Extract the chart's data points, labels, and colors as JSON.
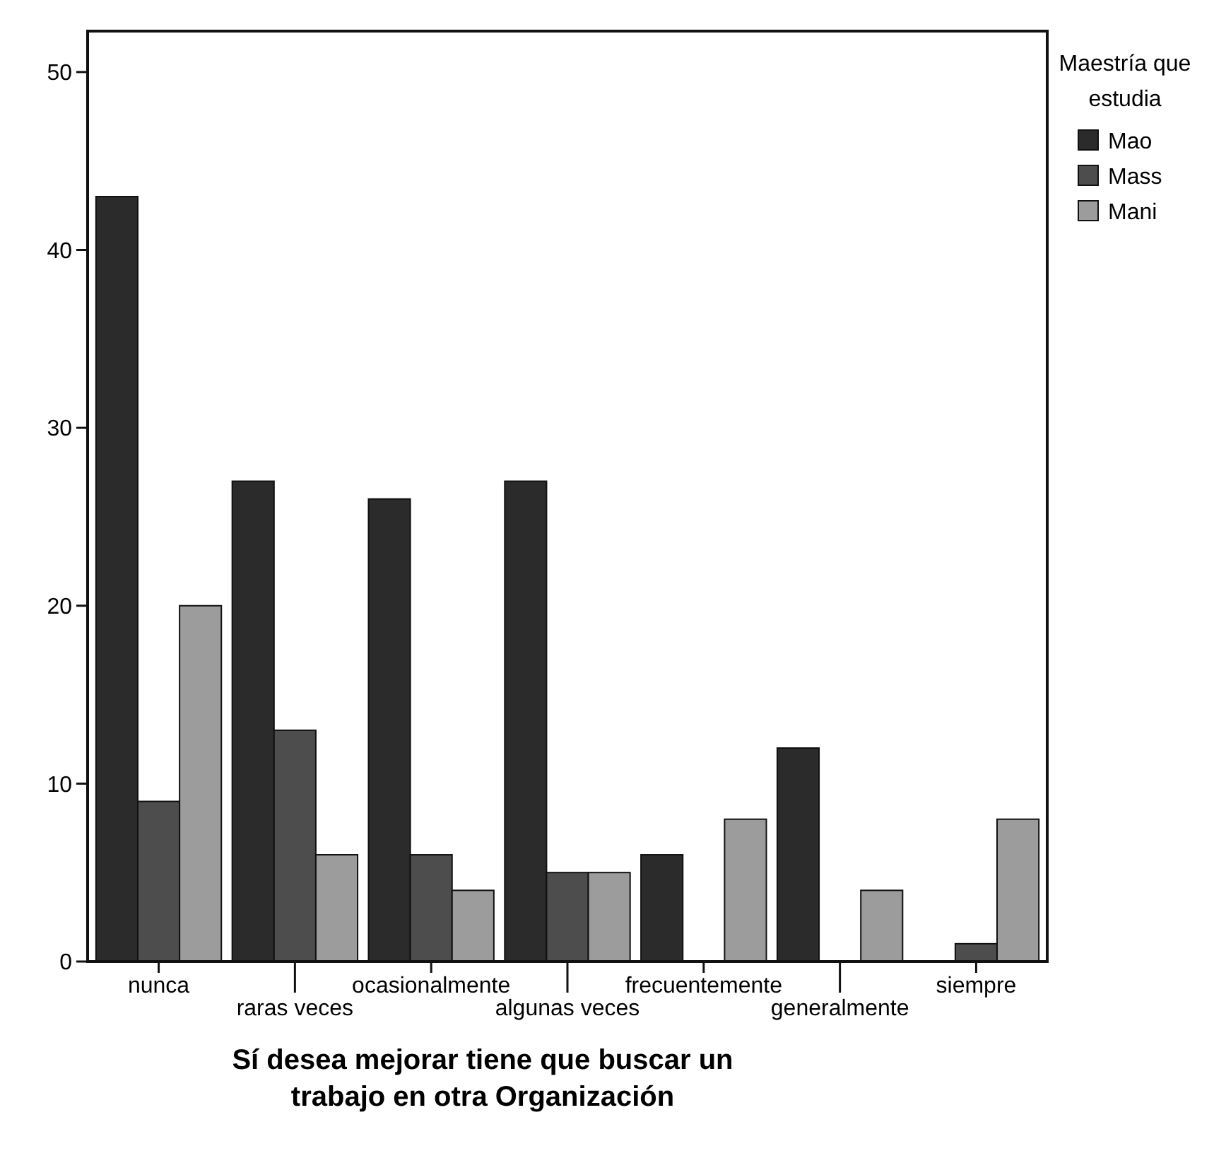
{
  "chart_data": {
    "type": "bar",
    "xlabel": "Sí desea mejorar tiene que buscar un trabajo en otra Organización",
    "legend_title": "Maestría que estudia",
    "legend": "top right",
    "categories": [
      "nunca",
      "raras veces",
      "ocasionalmente",
      "algunas veces",
      "frecuentemente",
      "generalmente",
      "siempre"
    ],
    "series": [
      {
        "name": "Mao",
        "color": "#2b2b2b",
        "values": [
          43,
          27,
          26,
          27,
          6,
          12,
          0
        ]
      },
      {
        "name": "Mass",
        "color": "#4d4d4d",
        "values": [
          9,
          13,
          6,
          5,
          0,
          0,
          1
        ]
      },
      {
        "name": "Mani",
        "color": "#9c9c9c",
        "values": [
          20,
          6,
          4,
          5,
          8,
          4,
          8
        ]
      }
    ],
    "ylim": [
      0,
      52.3
    ],
    "yticks": [
      0,
      10,
      20,
      30,
      40,
      50
    ],
    "grid": false
  }
}
